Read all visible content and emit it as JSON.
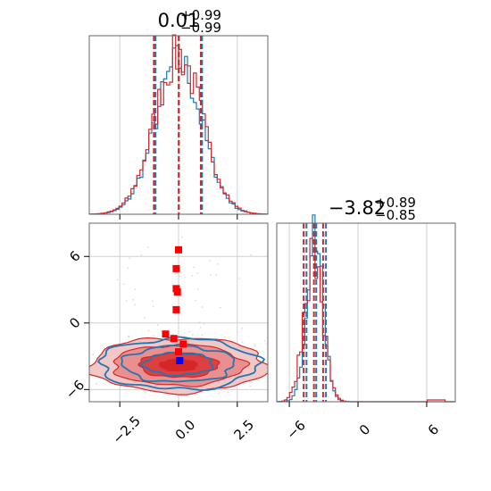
{
  "chart_data": [
    {
      "type": "histogram",
      "panel": "marginal-x",
      "title_main": "0.01",
      "title_sup": "+0.99",
      "title_sub": "−0.99",
      "xlim": [
        -3.8,
        3.8
      ],
      "grid": true,
      "series": [
        {
          "color": "#1f77b4",
          "quantiles": [
            -0.98,
            0.01,
            1.0
          ]
        },
        {
          "color": "#d62728",
          "quantiles": [
            -1.05,
            0.01,
            0.95
          ]
        }
      ],
      "profile_mu": 0.0,
      "profile_sigma": 0.99
    },
    {
      "type": "contour",
      "panel": "joint",
      "xlim": [
        -3.8,
        3.8
      ],
      "ylim": [
        -7.1,
        9.0
      ],
      "xticks": [
        "−2.5",
        "0.0",
        "2.5"
      ],
      "yticks": [
        "−6",
        "0",
        "6"
      ],
      "grid": true,
      "series": [
        {
          "color": "#1f77b4",
          "center": [
            0.0,
            -3.7
          ],
          "spread": [
            1.4,
            0.95
          ]
        },
        {
          "color": "#d62728",
          "center": [
            0.0,
            -3.8
          ],
          "spread": [
            1.6,
            1.05
          ]
        }
      ],
      "red_points": [
        {
          "x": 0.0,
          "y": 6.6
        },
        {
          "x": -0.1,
          "y": 4.9
        },
        {
          "x": -0.1,
          "y": 3.1
        },
        {
          "x": -0.05,
          "y": 2.8
        },
        {
          "x": -0.1,
          "y": 1.2
        },
        {
          "x": -0.55,
          "y": -1.0
        },
        {
          "x": -0.2,
          "y": -1.4
        },
        {
          "x": 0.2,
          "y": -1.9
        },
        {
          "x": 0.0,
          "y": -2.6
        }
      ],
      "blue_points": [
        {
          "x": 0.05,
          "y": -3.4
        }
      ]
    },
    {
      "type": "histogram",
      "panel": "marginal-y",
      "title_main": "−3.82",
      "title_sup": "+0.89",
      "title_sub": "−0.85",
      "xlim": [
        -7.1,
        8.5
      ],
      "xticks": [
        "−6",
        "0",
        "6"
      ],
      "grid": true,
      "series": [
        {
          "color": "#1f77b4",
          "quantiles": [
            -4.5,
            -3.65,
            -2.8
          ]
        },
        {
          "color": "#d62728",
          "quantiles": [
            -4.75,
            -3.85,
            -3.05
          ]
        }
      ],
      "profile_mu": -3.82,
      "profile_sigma": 0.87
    }
  ]
}
